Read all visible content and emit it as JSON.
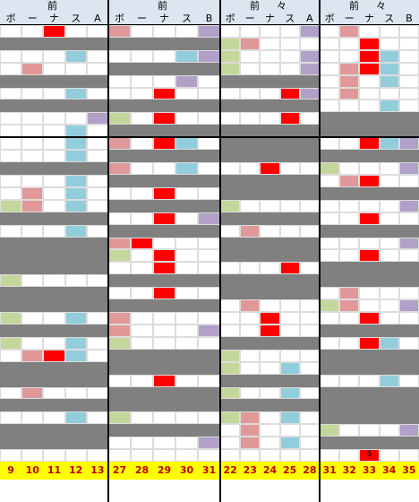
{
  "blocks": [
    {
      "header_top": "前",
      "header_bottom": [
        "ボ",
        "ー",
        "ナ",
        "ス",
        "A"
      ],
      "footer": [
        9,
        10,
        11,
        12,
        13
      ]
    },
    {
      "header_top": "前",
      "header_bottom": [
        "ボ",
        "ー",
        "ナ",
        "ス",
        "B"
      ],
      "footer": [
        27,
        28,
        29,
        30,
        31
      ]
    },
    {
      "header_top": "前　々",
      "header_bottom": [
        "ボ",
        "ー",
        "ナ",
        "ス",
        "A"
      ],
      "footer": [
        22,
        23,
        24,
        25,
        28
      ]
    },
    {
      "header_top": "前　々",
      "header_bottom": [
        "ボ",
        "ー",
        "ナ",
        "ス",
        "B"
      ],
      "footer": [
        31,
        32,
        33,
        34,
        35
      ]
    }
  ],
  "marker": "5"
}
